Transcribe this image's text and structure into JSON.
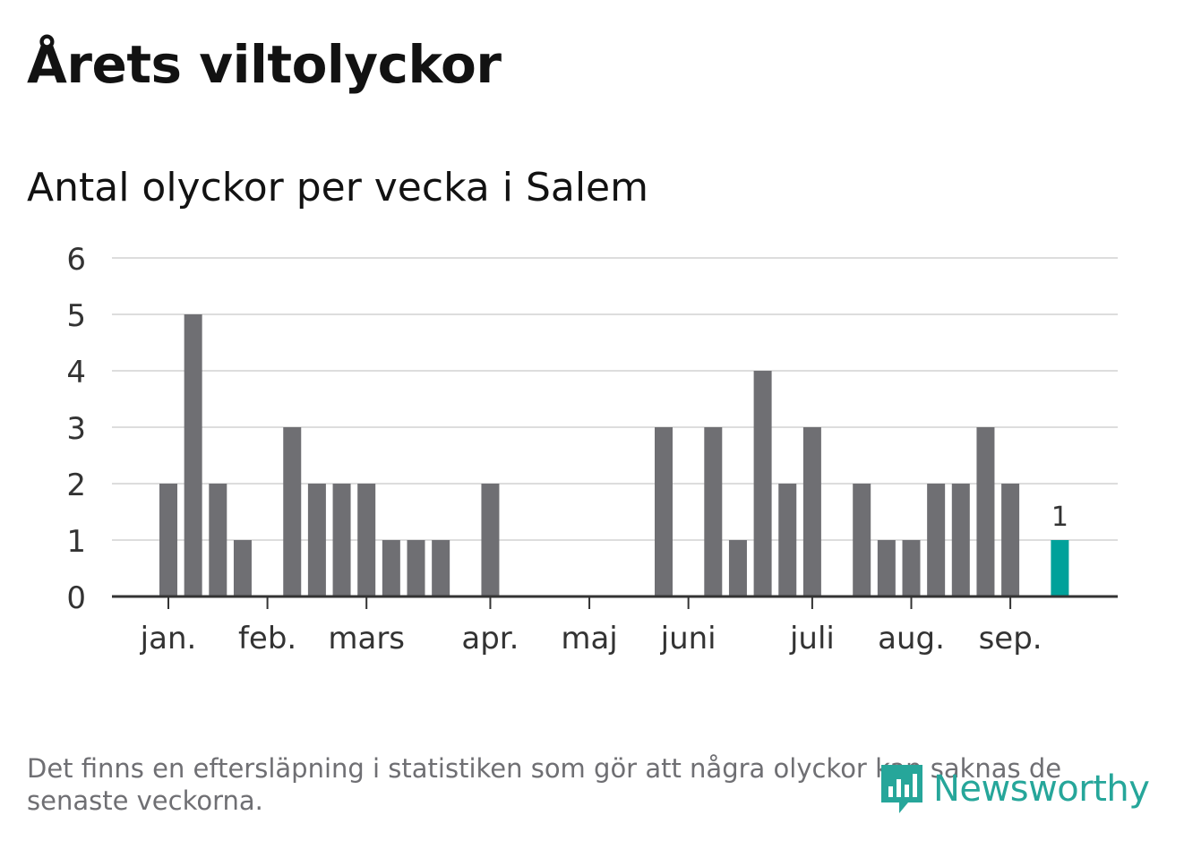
{
  "title": "Årets viltolyckor",
  "subtitle": "Antal olyckor per vecka i Salem",
  "note": "Det finns en eftersläpning i statistiken som gör att några olyckor kan saknas de senaste veckorna.",
  "brand": {
    "name": "Newsworthy",
    "icon": "newsworthy-logo-icon",
    "color": "#26a69a"
  },
  "colors": {
    "bar": "#6f6f73",
    "highlight": "#00a19a",
    "grid": "#dddddd",
    "axis": "#333333",
    "text": "#333333"
  },
  "chart_data": {
    "type": "bar",
    "title": "Antal olyckor per vecka i Salem",
    "xlabel": "",
    "ylabel": "",
    "ylim": [
      0,
      6
    ],
    "yticks": [
      0,
      1,
      2,
      3,
      4,
      5,
      6
    ],
    "grid": true,
    "legend": "none",
    "x_tick_labels": [
      "jan.",
      "feb.",
      "mars",
      "apr.",
      "maj",
      "juni",
      "juli",
      "aug.",
      "sep."
    ],
    "x_tick_weeks": [
      1,
      5,
      9,
      14,
      18,
      22,
      27,
      31,
      35
    ],
    "weeks": [
      1,
      2,
      3,
      4,
      5,
      6,
      7,
      8,
      9,
      10,
      11,
      12,
      13,
      14,
      15,
      16,
      17,
      18,
      19,
      20,
      21,
      22,
      23,
      24,
      25,
      26,
      27,
      28,
      29,
      30,
      31,
      32,
      33,
      34,
      35,
      36,
      37
    ],
    "values": [
      2,
      5,
      2,
      1,
      0,
      3,
      2,
      2,
      2,
      1,
      1,
      1,
      0,
      2,
      0,
      0,
      0,
      0,
      0,
      0,
      3,
      0,
      3,
      1,
      4,
      2,
      3,
      0,
      2,
      1,
      1,
      2,
      2,
      3,
      2,
      0,
      1
    ],
    "highlight_week": 37,
    "highlight_label": "1"
  }
}
